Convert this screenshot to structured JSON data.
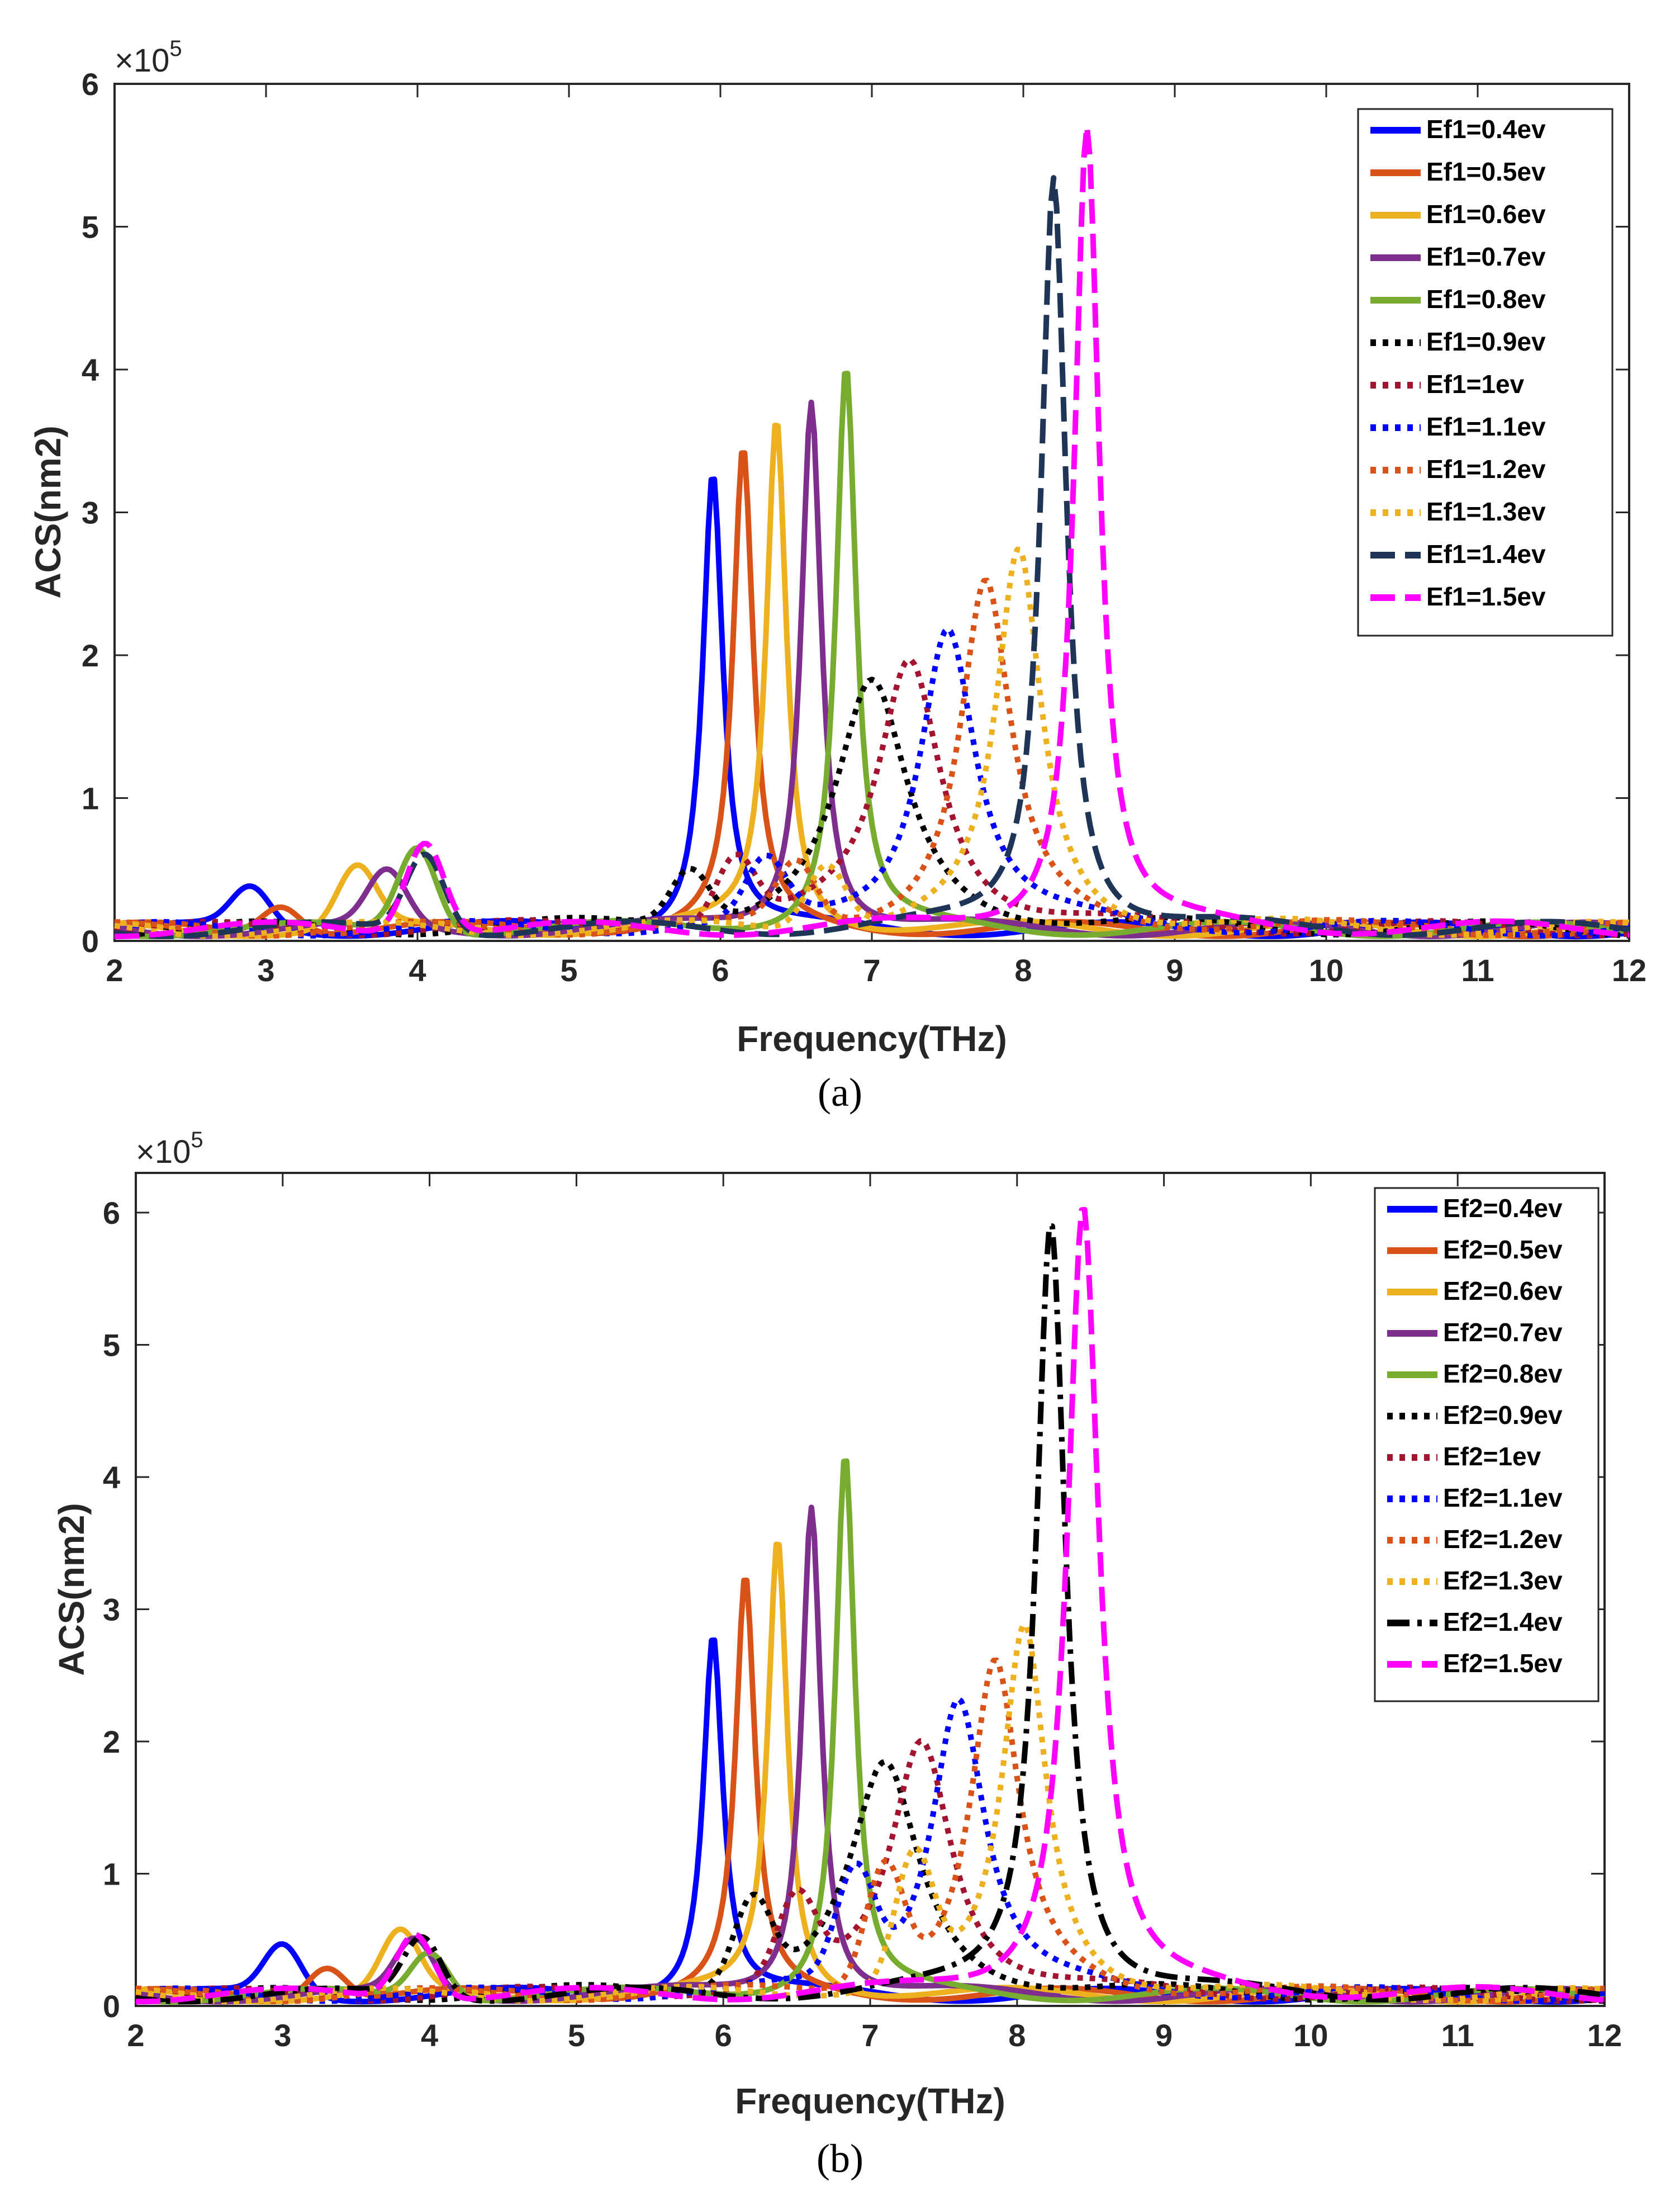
{
  "colors": {
    "blue": "#0000ff",
    "orange": "#d95319",
    "yellow": "#edb120",
    "purple": "#7e2f8e",
    "green": "#77ac30",
    "black": "#000000",
    "darkred": "#a2142f",
    "navy": "#1f3557",
    "magenta": "#ff00ff"
  },
  "chart_data": [
    {
      "type": "line",
      "panel_caption": "(a)",
      "xlabel": "Frequency(THz)",
      "ylabel": "ACS(nm2)",
      "multiplier": {
        "base": "×10",
        "exponent": "5"
      },
      "xlim": [
        2,
        12
      ],
      "ylim": [
        0,
        6
      ],
      "xticks": [
        "2",
        "3",
        "4",
        "5",
        "6",
        "7",
        "8",
        "9",
        "10",
        "11",
        "12"
      ],
      "yticks": [
        "0",
        "1",
        "2",
        "3",
        "4",
        "5",
        "6"
      ],
      "legend_position": "top-right",
      "series": [
        {
          "name": "Ef1=0.4ev",
          "color": "#0000ff",
          "style": "solid",
          "peak_x": 5.95,
          "peak_y": 3.22,
          "width": 0.08,
          "bump_x": 2.9,
          "bump_y": 0.28
        },
        {
          "name": "Ef1=0.5ev",
          "color": "#d95319",
          "style": "solid",
          "peak_x": 6.15,
          "peak_y": 3.34,
          "width": 0.08,
          "bump_x": 3.1,
          "bump_y": 0.2
        },
        {
          "name": "Ef1=0.6ev",
          "color": "#edb120",
          "style": "solid",
          "peak_x": 6.37,
          "peak_y": 3.57,
          "width": 0.08,
          "bump_x": 3.6,
          "bump_y": 0.42
        },
        {
          "name": "Ef1=0.7ev",
          "color": "#7e2f8e",
          "style": "solid",
          "peak_x": 6.6,
          "peak_y": 3.74,
          "width": 0.08,
          "bump_x": 3.8,
          "bump_y": 0.38
        },
        {
          "name": "Ef1=0.8ev",
          "color": "#77ac30",
          "style": "solid",
          "peak_x": 6.83,
          "peak_y": 3.95,
          "width": 0.08,
          "bump_x": 4.0,
          "bump_y": 0.6
        },
        {
          "name": "Ef1=0.9ev",
          "color": "#000000",
          "style": "dotted",
          "peak_x": 7.0,
          "peak_y": 1.7,
          "width": 0.28,
          "bump_x": 5.8,
          "bump_y": 0.38
        },
        {
          "name": "Ef1=1ev",
          "color": "#a2142f",
          "style": "dotted",
          "peak_x": 7.25,
          "peak_y": 1.9,
          "width": 0.25,
          "bump_x": 6.1,
          "bump_y": 0.45
        },
        {
          "name": "Ef1=1.1ev",
          "color": "#0000ff",
          "style": "dotted",
          "peak_x": 7.5,
          "peak_y": 2.15,
          "width": 0.22,
          "bump_x": 6.3,
          "bump_y": 0.4
        },
        {
          "name": "Ef1=1.2ev",
          "color": "#d95319",
          "style": "dotted",
          "peak_x": 7.75,
          "peak_y": 2.42,
          "width": 0.2,
          "bump_x": 6.5,
          "bump_y": 0.42
        },
        {
          "name": "Ef1=1.3ev",
          "color": "#edb120",
          "style": "dotted",
          "peak_x": 7.97,
          "peak_y": 2.63,
          "width": 0.18,
          "bump_x": 6.7,
          "bump_y": 0.45
        },
        {
          "name": "Ef1=1.4ev",
          "color": "#1f3557",
          "style": "dashed",
          "peak_x": 8.2,
          "peak_y": 5.3,
          "width": 0.1,
          "bump_x": 4.05,
          "bump_y": 0.55
        },
        {
          "name": "Ef1=1.5ev",
          "color": "#ff00ff",
          "style": "dashed",
          "peak_x": 8.42,
          "peak_y": 5.65,
          "width": 0.1,
          "bump_x": 4.05,
          "bump_y": 0.65
        }
      ]
    },
    {
      "type": "line",
      "panel_caption": "(b)",
      "xlabel": "Frequency(THz)",
      "ylabel": "ACS(nm2)",
      "multiplier": {
        "base": "×10",
        "exponent": "5"
      },
      "xlim": [
        2,
        12
      ],
      "ylim": [
        0,
        6.3
      ],
      "xticks": [
        "2",
        "3",
        "4",
        "5",
        "6",
        "7",
        "8",
        "9",
        "10",
        "11",
        "12"
      ],
      "yticks": [
        "0",
        "1",
        "2",
        "3",
        "4",
        "5",
        "6"
      ],
      "legend_position": "top-right",
      "series": [
        {
          "name": "Ef2=0.4ev",
          "color": "#0000ff",
          "style": "solid",
          "peak_x": 5.93,
          "peak_y": 2.75,
          "width": 0.08,
          "bump_x": 3.0,
          "bump_y": 0.38
        },
        {
          "name": "Ef2=0.5ev",
          "color": "#d95319",
          "style": "solid",
          "peak_x": 6.15,
          "peak_y": 3.14,
          "width": 0.08,
          "bump_x": 3.3,
          "bump_y": 0.25
        },
        {
          "name": "Ef2=0.6ev",
          "color": "#edb120",
          "style": "solid",
          "peak_x": 6.37,
          "peak_y": 3.45,
          "width": 0.08,
          "bump_x": 3.8,
          "bump_y": 0.45
        },
        {
          "name": "Ef2=0.7ev",
          "color": "#7e2f8e",
          "style": "solid",
          "peak_x": 6.6,
          "peak_y": 3.74,
          "width": 0.08,
          "bump_x": 3.9,
          "bump_y": 0.4
        },
        {
          "name": "Ef2=0.8ev",
          "color": "#77ac30",
          "style": "solid",
          "peak_x": 6.83,
          "peak_y": 4.1,
          "width": 0.08,
          "bump_x": 4.0,
          "bump_y": 0.35
        },
        {
          "name": "Ef2=0.9ev",
          "color": "#000000",
          "style": "dotted",
          "peak_x": 7.1,
          "peak_y": 1.72,
          "width": 0.28,
          "bump_x": 6.2,
          "bump_y": 0.65
        },
        {
          "name": "Ef2=1ev",
          "color": "#a2142f",
          "style": "dotted",
          "peak_x": 7.35,
          "peak_y": 1.95,
          "width": 0.25,
          "bump_x": 6.5,
          "bump_y": 0.6
        },
        {
          "name": "Ef2=1.1ev",
          "color": "#0000ff",
          "style": "dotted",
          "peak_x": 7.6,
          "peak_y": 2.28,
          "width": 0.22,
          "bump_x": 6.9,
          "bump_y": 0.8
        },
        {
          "name": "Ef2=1.2ev",
          "color": "#d95319",
          "style": "dotted",
          "peak_x": 7.85,
          "peak_y": 2.5,
          "width": 0.2,
          "bump_x": 7.1,
          "bump_y": 0.9
        },
        {
          "name": "Ef2=1.3ev",
          "color": "#edb120",
          "style": "dotted",
          "peak_x": 8.05,
          "peak_y": 2.78,
          "width": 0.18,
          "bump_x": 7.3,
          "bump_y": 0.95
        },
        {
          "name": "Ef2=1.4ev",
          "color": "#000000",
          "style": "dashdot",
          "peak_x": 8.23,
          "peak_y": 5.9,
          "width": 0.12,
          "bump_x": 3.95,
          "bump_y": 0.45
        },
        {
          "name": "Ef2=1.5ev",
          "color": "#ff00ff",
          "style": "dashed",
          "peak_x": 8.45,
          "peak_y": 6.0,
          "width": 0.13,
          "bump_x": 3.9,
          "bump_y": 0.5
        }
      ]
    }
  ]
}
